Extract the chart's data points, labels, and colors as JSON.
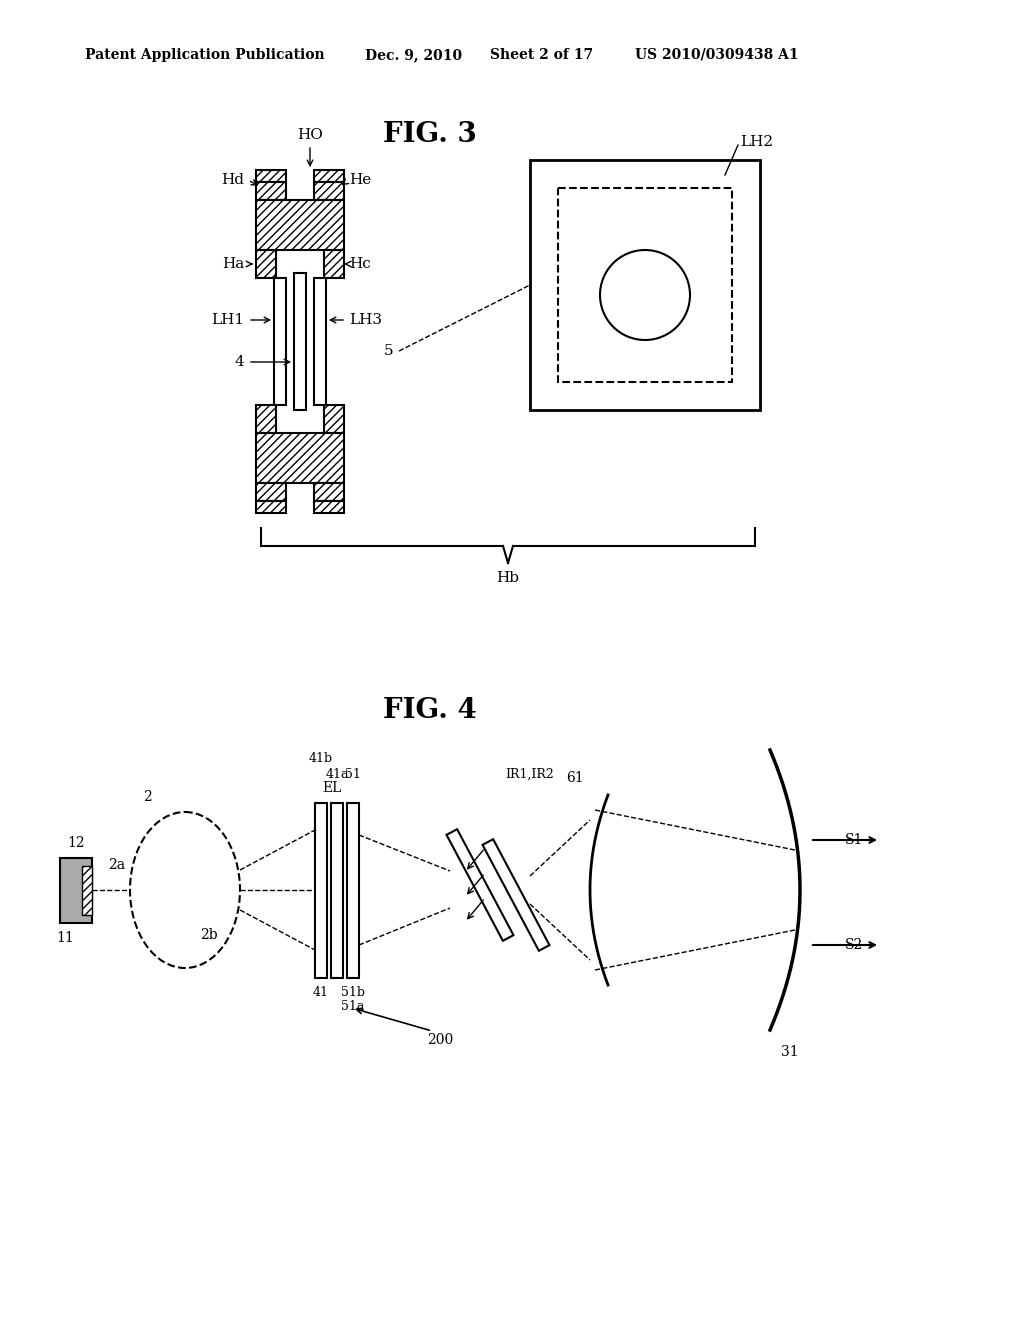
{
  "bg_color": "#ffffff",
  "header_text": "Patent Application Publication",
  "header_date": "Dec. 9, 2010",
  "header_sheet": "Sheet 2 of 17",
  "header_patent": "US 2010/0309438 A1",
  "fig3_title": "FIG. 3",
  "fig4_title": "FIG. 4"
}
